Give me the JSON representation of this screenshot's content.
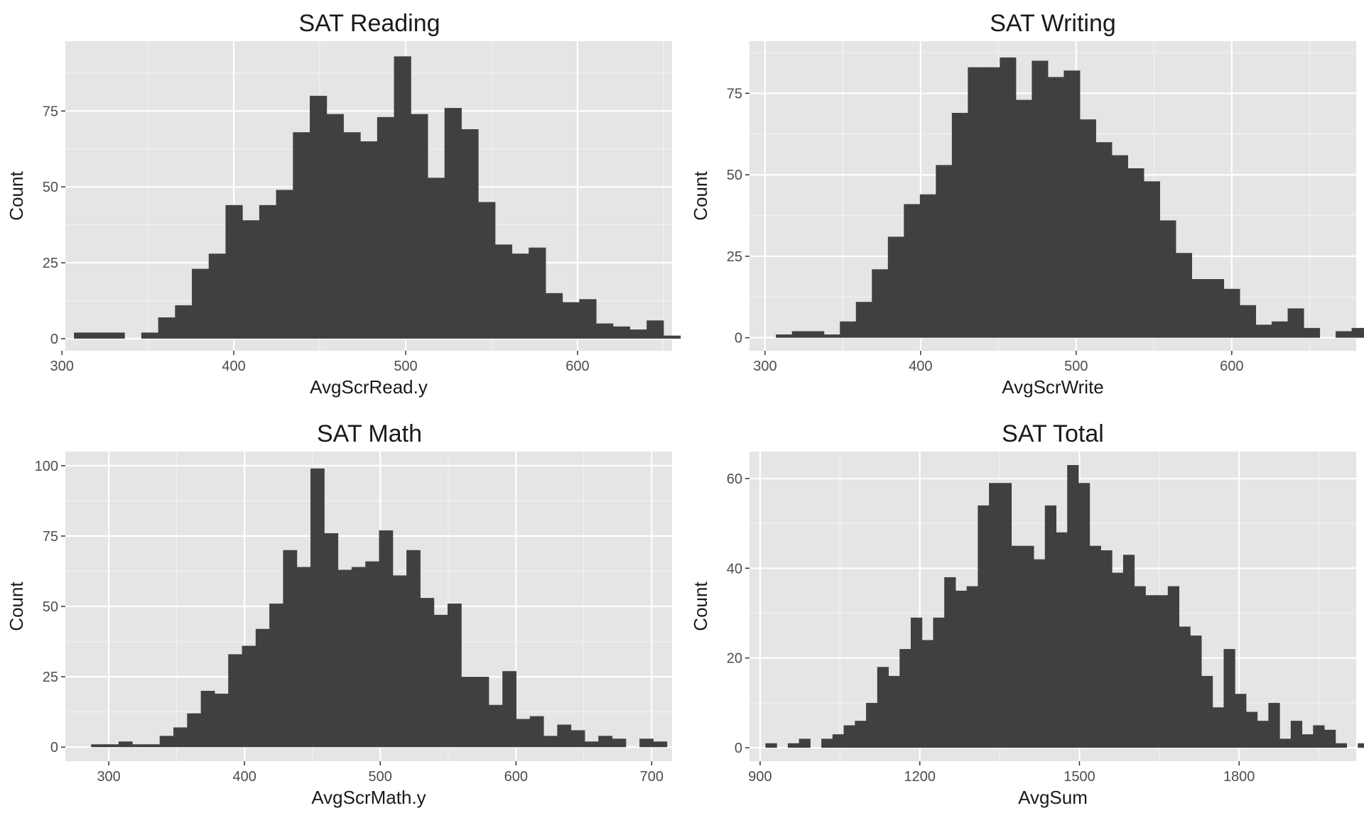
{
  "chart_data": [
    {
      "type": "bar",
      "title": "SAT Reading",
      "xlabel": "AvgScrRead.y",
      "ylabel": "Count",
      "xlim": [
        302,
        655
      ],
      "ylim": [
        -4,
        98
      ],
      "xticks": [
        300,
        400,
        500,
        600
      ],
      "yticks": [
        0,
        25,
        50,
        75
      ],
      "bin_start": 307,
      "bin_width": 9.8,
      "counts": [
        2,
        2,
        2,
        0,
        2,
        7,
        11,
        23,
        28,
        44,
        39,
        44,
        49,
        68,
        80,
        74,
        68,
        65,
        73,
        93,
        74,
        53,
        76,
        69,
        45,
        31,
        28,
        30,
        15,
        12,
        13,
        5,
        4,
        3,
        6,
        1
      ],
      "fill": "#404040",
      "panel_bg": "#e5e5e5",
      "grid": true
    },
    {
      "type": "bar",
      "title": "SAT Writing",
      "xlabel": "AvgScrWrite",
      "ylabel": "Count",
      "xlim": [
        290,
        680
      ],
      "ylim": [
        -4,
        91
      ],
      "xticks": [
        300,
        400,
        500,
        600
      ],
      "yticks": [
        0,
        25,
        50,
        75
      ],
      "bin_start": 307,
      "bin_width": 10.28,
      "counts": [
        1,
        2,
        2,
        1,
        5,
        11,
        21,
        31,
        41,
        44,
        53,
        69,
        83,
        83,
        86,
        73,
        85,
        80,
        82,
        67,
        60,
        56,
        52,
        48,
        36,
        26,
        18,
        18,
        15,
        10,
        4,
        5,
        9,
        3,
        0,
        2,
        3,
        1
      ],
      "fill": "#404040",
      "panel_bg": "#e5e5e5",
      "grid": true
    },
    {
      "type": "bar",
      "title": "SAT Math",
      "xlabel": "AvgScrMath.y",
      "ylabel": "Count",
      "xlim": [
        268,
        715
      ],
      "ylim": [
        -5,
        105
      ],
      "xticks": [
        300,
        400,
        500,
        600,
        700
      ],
      "yticks": [
        0,
        25,
        50,
        75,
        100
      ],
      "bin_start": 287,
      "bin_width": 10.1,
      "counts": [
        1,
        1,
        2,
        1,
        1,
        4,
        7,
        12,
        20,
        19,
        33,
        36,
        42,
        51,
        70,
        64,
        99,
        76,
        63,
        64,
        66,
        77,
        61,
        70,
        53,
        47,
        51,
        25,
        25,
        15,
        27,
        10,
        11,
        4,
        8,
        6,
        2,
        4,
        3,
        0,
        3,
        2
      ],
      "fill": "#404040",
      "panel_bg": "#e5e5e5",
      "grid": true
    },
    {
      "type": "bar",
      "title": "SAT Total",
      "xlabel": "AvgSum",
      "ylabel": "Count",
      "xlim": [
        880,
        2020
      ],
      "ylim": [
        -3,
        66
      ],
      "xticks": [
        900,
        1200,
        1500,
        1800
      ],
      "yticks": [
        0,
        20,
        40,
        60
      ],
      "bin_start": 910,
      "bin_width": 21,
      "counts": [
        1,
        0,
        1,
        2,
        0,
        2,
        3,
        5,
        6,
        10,
        18,
        16,
        22,
        29,
        24,
        29,
        38,
        35,
        36,
        54,
        59,
        59,
        45,
        45,
        42,
        54,
        48,
        63,
        59,
        45,
        44,
        39,
        43,
        36,
        34,
        34,
        36,
        27,
        25,
        16,
        9,
        22,
        12,
        8,
        6,
        10,
        2,
        6,
        3,
        5,
        4,
        1,
        0,
        1,
        3,
        1,
        1
      ],
      "fill": "#404040",
      "panel_bg": "#e5e5e5",
      "grid": true
    }
  ]
}
